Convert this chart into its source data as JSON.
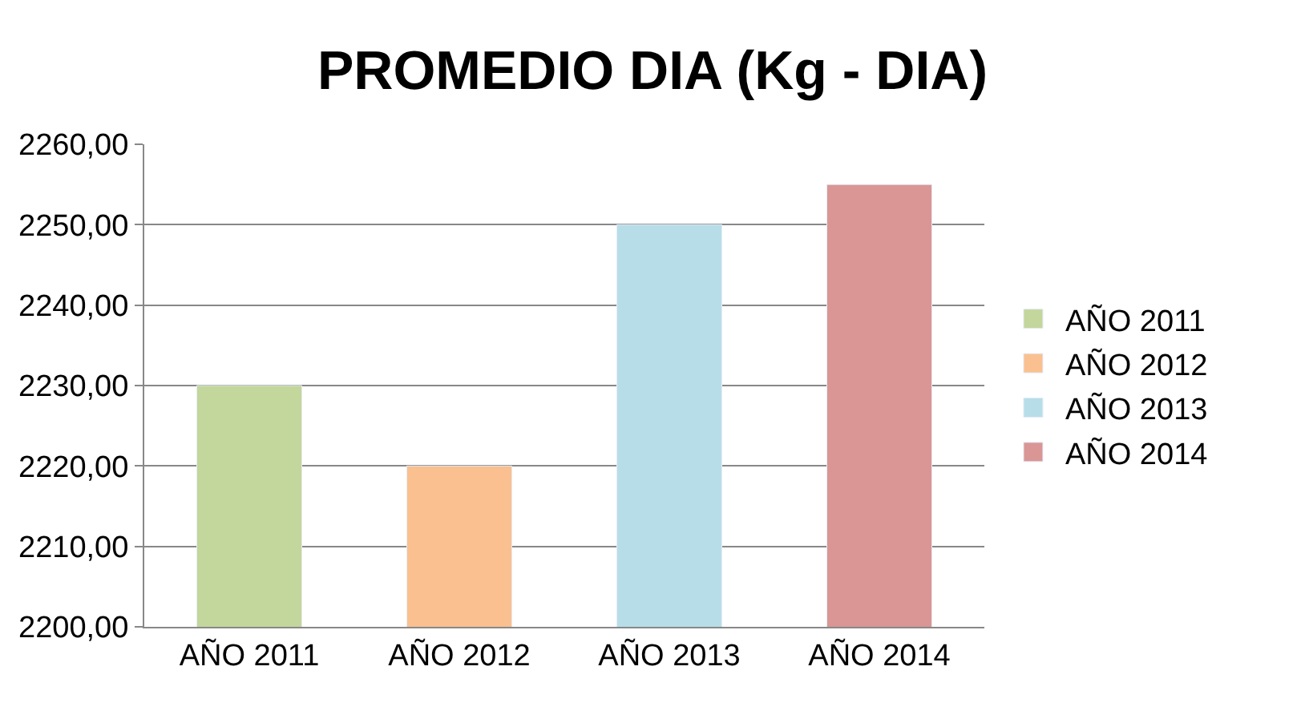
{
  "chart_data": {
    "type": "bar",
    "title": "PROMEDIO DIA (Kg - DIA)",
    "categories": [
      "AÑO 2011",
      "AÑO 2012",
      "AÑO 2013",
      "AÑO 2014"
    ],
    "series": [
      {
        "name": "AÑO 2011",
        "color": "#c3d69b",
        "values": [
          2230,
          null,
          null,
          null
        ]
      },
      {
        "name": "AÑO 2012",
        "color": "#fac090",
        "values": [
          null,
          2220,
          null,
          null
        ]
      },
      {
        "name": "AÑO 2013",
        "color": "#b7dee8",
        "values": [
          null,
          null,
          2250,
          null
        ]
      },
      {
        "name": "AÑO 2014",
        "color": "#d99694",
        "values": [
          null,
          null,
          null,
          2255
        ]
      }
    ],
    "ylim": [
      2200,
      2260
    ],
    "yticks": [
      {
        "value": 2200,
        "label": "2200,00"
      },
      {
        "value": 2210,
        "label": "2210,00"
      },
      {
        "value": 2220,
        "label": "2220,00"
      },
      {
        "value": 2230,
        "label": "2230,00"
      },
      {
        "value": 2240,
        "label": "2240,00"
      },
      {
        "value": 2250,
        "label": "2250,00"
      },
      {
        "value": 2260,
        "label": "2260,00"
      }
    ],
    "grid": "y",
    "legend": "right"
  }
}
